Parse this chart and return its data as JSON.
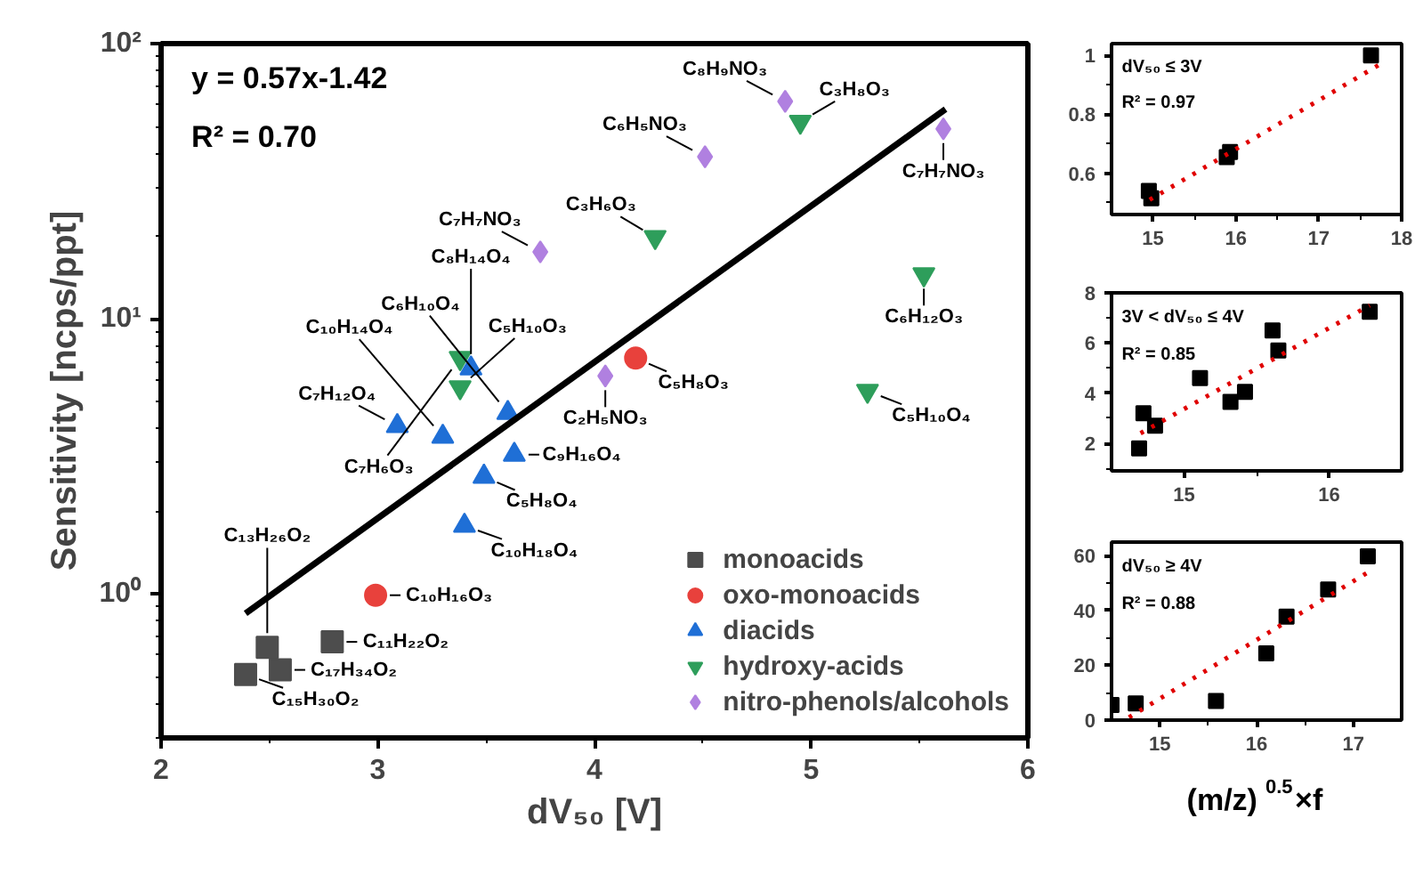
{
  "chart_data": [
    {
      "type": "scatter",
      "xlabel": "dV₅₀ [V]",
      "ylabel": "Sensitivity [ncps/ppt]",
      "log": "y",
      "grid": false,
      "legend": "bottom right",
      "xlim": [
        2,
        6
      ],
      "ylim": [
        0.3,
        100
      ],
      "xticks": [
        2,
        3,
        4,
        5,
        6,
        {
          "value": 2.5,
          "label": null
        },
        {
          "value": 3.5,
          "label": null
        },
        {
          "value": 4.5,
          "label": null
        },
        {
          "value": 5.5,
          "label": null
        }
      ],
      "yticks": [
        {
          "value": 1,
          "label": "10⁰"
        },
        {
          "value": 10,
          "label": "10¹"
        },
        {
          "value": 100,
          "label": "10²"
        },
        {
          "value": 0.3,
          "label": null
        },
        {
          "value": 0.4,
          "label": null
        },
        {
          "value": 0.5,
          "label": null
        },
        {
          "value": 0.6,
          "label": null
        },
        {
          "value": 0.7,
          "label": null
        },
        {
          "value": 0.8,
          "label": null
        },
        {
          "value": 0.9,
          "label": null
        },
        {
          "value": 2,
          "label": null
        },
        {
          "value": 3,
          "label": null
        },
        {
          "value": 4,
          "label": null
        },
        {
          "value": 5,
          "label": null
        },
        {
          "value": 6,
          "label": null
        },
        {
          "value": 7,
          "label": null
        },
        {
          "value": 8,
          "label": null
        },
        {
          "value": 9,
          "label": null
        },
        {
          "value": 20,
          "label": null
        },
        {
          "value": 30,
          "label": null
        },
        {
          "value": 40,
          "label": null
        },
        {
          "value": 50,
          "label": null
        },
        {
          "value": 60,
          "label": null
        },
        {
          "value": 70,
          "label": null
        },
        {
          "value": 80,
          "label": null
        },
        {
          "value": 90,
          "label": null
        }
      ],
      "series": [
        {
          "name": "monoacids",
          "color": "#4d4d4d",
          "marker": "square",
          "x": [
            2.39,
            2.49,
            2.55,
            2.79
          ],
          "values": [
            0.51,
            0.64,
            0.53,
            0.67
          ]
        },
        {
          "name": "oxo-monoacids",
          "color": "#e8413c",
          "marker": "circle",
          "x": [
            2.99,
            4.19
          ],
          "values": [
            0.99,
            7.2
          ]
        },
        {
          "name": "diacids",
          "color": "#1f6fd6",
          "marker": "triangle",
          "x": [
            3.09,
            3.3,
            3.6,
            3.63,
            3.49,
            3.4,
            3.43
          ],
          "values": [
            4.08,
            3.73,
            4.55,
            3.21,
            2.67,
            1.77,
            6.61
          ]
        },
        {
          "name": "hydroxy-acids",
          "color": "#2e9e5b",
          "marker": "triangle_down",
          "x": [
            3.38,
            3.38,
            4.28,
            4.95,
            5.52,
            5.26
          ],
          "values": [
            7.2,
            5.64,
            19.8,
            52,
            14.5,
            5.47
          ]
        },
        {
          "name": "nitro-phenols/alcohols",
          "color": "#b080e0",
          "marker": "diamond",
          "x": [
            3.75,
            4.88,
            4.51,
            5.61,
            4.05
          ],
          "values": [
            17.5,
            61.7,
            38.8,
            49,
            6.2
          ]
        },
        {
          "type": "line",
          "color": "#000000",
          "line_style": "solid",
          "x": [
            2.39,
            5.62
          ],
          "values": [
            0.85,
            57.8
          ]
        }
      ],
      "annotations": [
        "y = 0.57x-1.42",
        "R² = 0.70",
        {
          "text": "C₁₅H₃₀O₂",
          "x": 2.39,
          "y": 0.51
        },
        {
          "text": "C₁₃H₂₆O₂",
          "x": 2.49,
          "y": 0.64
        },
        {
          "text": "C₁₇H₃₄O₂",
          "x": 2.55,
          "y": 0.53
        },
        {
          "text": "C₁₁H₂₂O₂",
          "x": 2.79,
          "y": 0.67
        },
        {
          "text": "C₁₀H₁₆O₃",
          "x": 2.99,
          "y": 0.99
        },
        {
          "text": "C₁₀H₁₈O₄",
          "x": 3.4,
          "y": 1.77
        },
        {
          "text": "C₅H₈O₄",
          "x": 3.49,
          "y": 2.67
        },
        {
          "text": "C₉H₁₆O₄",
          "x": 3.63,
          "y": 3.21
        },
        {
          "text": "C₆H₁₀O₄",
          "x": 3.6,
          "y": 4.55
        },
        {
          "text": "C₇H₁₂O₄",
          "x": 3.09,
          "y": 4.08
        },
        {
          "text": "C₁₀H₁₄O₄",
          "x": 3.3,
          "y": 3.73
        },
        {
          "text": "C₅H₁₀O₃",
          "x": 3.38,
          "y": 5.64
        },
        {
          "text": "C₇H₆O₃",
          "x": 3.38,
          "y": 7.2
        },
        {
          "text": "C₈H₁₄O₄",
          "x": 3.43,
          "y": 6.61
        },
        {
          "text": "C₇H₇NO₃",
          "x": 3.75,
          "y": 17.5
        },
        {
          "text": "C₆H₅NO₃",
          "x": 4.51,
          "y": 38.8
        },
        {
          "text": "C₃H₆O₃",
          "x": 4.28,
          "y": 19.8
        },
        {
          "text": "C₈H₉NO₃",
          "x": 4.88,
          "y": 61.7
        },
        {
          "text": "C₃H₈O₃",
          "x": 4.95,
          "y": 52
        },
        {
          "text": "C₇H₇NO₃",
          "x": 5.61,
          "y": 49
        },
        {
          "text": "C₆H₁₂O₃",
          "x": 5.52,
          "y": 14.5
        },
        {
          "text": "C₅H₁₀O₄",
          "x": 5.26,
          "y": 5.47
        },
        {
          "text": "C₅H₈O₃",
          "x": 4.19,
          "y": 7.2
        },
        {
          "text": "C₂H₅NO₃",
          "x": 4.05,
          "y": 6.2
        }
      ]
    },
    {
      "type": "scatter",
      "grid": false,
      "xlim": [
        14.5,
        18
      ],
      "ylim": [
        0.46,
        1.04
      ],
      "xticks": [
        15,
        16,
        17,
        18,
        {
          "value": 15.5,
          "label": null
        },
        {
          "value": 16.5,
          "label": null
        },
        {
          "value": 17.5,
          "label": null
        }
      ],
      "yticks": [
        0.6,
        0.8,
        1,
        {
          "value": 0.5,
          "label": null
        },
        {
          "value": 0.7,
          "label": null
        },
        {
          "value": 0.9,
          "label": null
        }
      ],
      "series": [
        {
          "color": "#000000",
          "marker": "square",
          "x": [
            14.95,
            14.98,
            15.89,
            15.93,
            17.63
          ],
          "values": [
            0.54,
            0.515,
            0.655,
            0.672,
            1.0
          ]
        },
        {
          "type": "line",
          "color": "#e00000",
          "line_style": "dotted",
          "x": [
            14.96,
            17.74
          ],
          "values": [
            0.51,
            0.97
          ]
        }
      ],
      "annotations": [
        "dV₅₀ ≤ 3V",
        "R² = 0.97"
      ]
    },
    {
      "type": "scatter",
      "grid": false,
      "xlim": [
        14.5,
        16.5
      ],
      "ylim": [
        0.9,
        8
      ],
      "xticks": [
        15,
        16,
        {
          "value": 15.5,
          "label": null
        }
      ],
      "yticks": [
        2,
        4,
        6,
        8,
        {
          "value": 1,
          "label": null
        },
        {
          "value": 3,
          "label": null
        },
        {
          "value": 5,
          "label": null
        },
        {
          "value": 7,
          "label": null
        }
      ],
      "series": [
        {
          "color": "#000000",
          "marker": "square",
          "x": [
            14.69,
            14.72,
            14.8,
            15.11,
            15.32,
            15.42,
            15.61,
            15.65,
            16.28
          ],
          "values": [
            1.8,
            3.2,
            2.7,
            4.6,
            3.65,
            4.05,
            6.5,
            5.7,
            7.25
          ]
        },
        {
          "type": "line",
          "color": "#e00000",
          "line_style": "dotted",
          "x": [
            14.7,
            16.28
          ],
          "values": [
            2.4,
            7.5
          ]
        }
      ],
      "annotations": [
        "3V < dV₅₀ ≤ 4V",
        "R² = 0.85"
      ]
    },
    {
      "type": "scatter",
      "grid": false,
      "xlabel": "(m/z)$^{0.5}$×f",
      "xlim": [
        14.5,
        17.5
      ],
      "ylim": [
        0,
        65
      ],
      "xticks": [
        15,
        16,
        17,
        {
          "value": 15.5,
          "label": null
        },
        {
          "value": 16.5,
          "label": null
        }
      ],
      "yticks": [
        0,
        20,
        40,
        60,
        {
          "value": 10,
          "label": null
        },
        {
          "value": 30,
          "label": null
        },
        {
          "value": 50,
          "label": null
        }
      ],
      "series": [
        {
          "color": "#000000",
          "marker": "square",
          "x": [
            14.5,
            14.75,
            15.58,
            16.1,
            16.31,
            16.74,
            17.15
          ],
          "values": [
            5.5,
            6.1,
            7,
            24.4,
            37.8,
            47.7,
            59.8
          ]
        },
        {
          "type": "line",
          "color": "#e00000",
          "line_style": "dotted",
          "x": [
            14.68,
            17.14
          ],
          "values": [
            1,
            53.7
          ]
        }
      ],
      "annotations": [
        "dV₅₀ ≥ 4V",
        "R² = 0.88"
      ]
    }
  ]
}
